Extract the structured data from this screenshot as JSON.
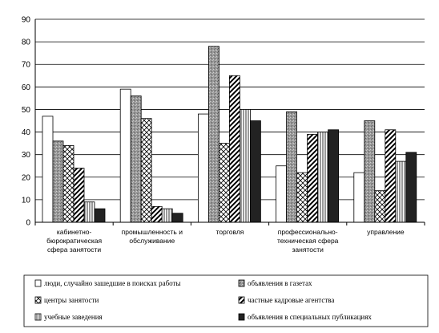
{
  "chart_data": {
    "type": "bar",
    "ylim": [
      0,
      90
    ],
    "yticks": [
      0,
      10,
      20,
      30,
      40,
      50,
      60,
      70,
      80,
      90
    ],
    "grid": true,
    "legend_position": "bottom",
    "categories": [
      [
        "кабинетно-",
        "бюрократическая",
        "сфера занятости"
      ],
      [
        "промышленность и",
        "обслуживание"
      ],
      [
        "торговля"
      ],
      [
        "профессионально-",
        "техническая сфера",
        "занятости"
      ],
      [
        "управление"
      ]
    ],
    "series": [
      {
        "name": "люди, случайно зашедшие в поисках работы",
        "pattern": "white",
        "values": [
          47,
          59,
          48,
          25,
          22
        ]
      },
      {
        "name": "объявления в газетах",
        "pattern": "gray",
        "values": [
          36,
          56,
          78,
          49,
          45
        ]
      },
      {
        "name": "центры занятости",
        "pattern": "cross",
        "values": [
          34,
          46,
          35,
          22,
          14
        ]
      },
      {
        "name": "частные кадровые агентства",
        "pattern": "diag",
        "values": [
          24,
          7,
          65,
          39,
          41
        ]
      },
      {
        "name": "учебные заведения",
        "pattern": "vert",
        "values": [
          9,
          6,
          50,
          40,
          27
        ]
      },
      {
        "name": "объявления в специальных публикациях",
        "pattern": "black",
        "values": [
          6,
          4,
          45,
          41,
          31
        ]
      }
    ]
  }
}
